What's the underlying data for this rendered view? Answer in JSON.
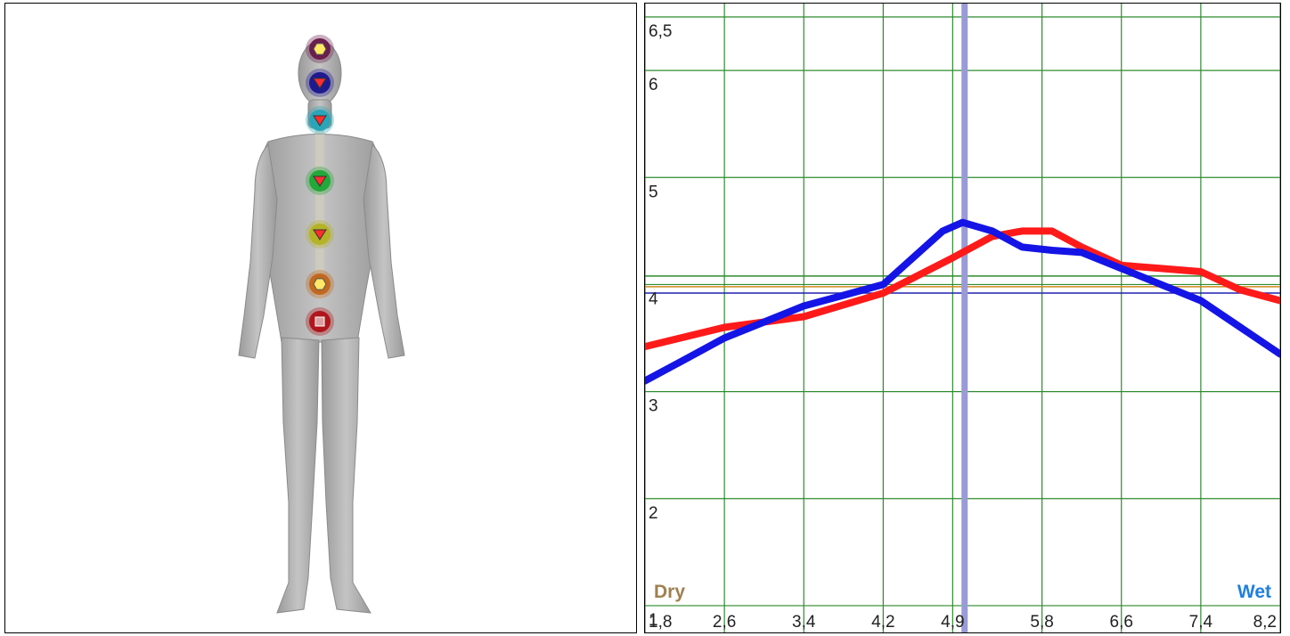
{
  "body_view": {
    "figure": "human-figure-front",
    "chakras": [
      {
        "name": "crown",
        "color": "#6b1d4e",
        "marker": "hexagon",
        "marker_color": "#ffe866"
      },
      {
        "name": "third-eye",
        "color": "#1f1b8f",
        "marker": "triangle-down",
        "marker_color": "#ff2d2d"
      },
      {
        "name": "throat",
        "color": "#2aa5b8",
        "marker": "triangle-down",
        "marker_color": "#ff2d2d"
      },
      {
        "name": "heart",
        "color": "#23a83a",
        "marker": "triangle-down",
        "marker_color": "#ff2d2d"
      },
      {
        "name": "solar-plexus",
        "color": "#b5b327",
        "marker": "triangle-down",
        "marker_color": "#ff2d2d"
      },
      {
        "name": "sacral",
        "color": "#c2691f",
        "marker": "hexagon",
        "marker_color": "#ffe866"
      },
      {
        "name": "root",
        "color": "#b0161b",
        "marker": "square",
        "marker_color": "#d8a0a0"
      }
    ]
  },
  "chart_data": {
    "type": "line",
    "xlim": [
      1.8,
      8.2
    ],
    "ylim": [
      0.75,
      6.6
    ],
    "x_ticks": [
      "1,8",
      "2,6",
      "3,4",
      "4,2",
      "4,9",
      "5,8",
      "6,6",
      "7,4",
      "8,2"
    ],
    "x_tick_values": [
      1.8,
      2.6,
      3.4,
      4.2,
      4.9,
      5.8,
      6.6,
      7.4,
      8.2
    ],
    "y_ticks": [
      "1",
      "2",
      "3",
      "4",
      "5",
      "6",
      "6,5"
    ],
    "y_tick_values": [
      1,
      2,
      3,
      4,
      5,
      6,
      6.5
    ],
    "grid": true,
    "grid_color": "#2e8b2e",
    "left_label": "Dry",
    "right_label": "Wet",
    "left_label_color": "#a08050",
    "right_label_color": "#1f7fe0",
    "series": [
      {
        "color": "#ff1a1a",
        "x": [
          1.8,
          2.6,
          3.0,
          3.4,
          4.2,
          4.9,
          5.3,
          5.6,
          5.9,
          6.2,
          6.6,
          7.0,
          7.4,
          7.8,
          8.2
        ],
        "y": [
          3.42,
          3.6,
          3.65,
          3.7,
          3.92,
          4.25,
          4.45,
          4.5,
          4.5,
          4.35,
          4.18,
          4.15,
          4.12,
          3.95,
          3.85
        ]
      },
      {
        "color": "#1414e6",
        "x": [
          1.8,
          2.2,
          2.6,
          3.0,
          3.4,
          3.8,
          4.2,
          4.5,
          4.8,
          5.0,
          5.3,
          5.6,
          5.9,
          6.2,
          6.6,
          7.0,
          7.4,
          7.8,
          8.2
        ],
        "y": [
          3.1,
          3.3,
          3.5,
          3.65,
          3.8,
          3.9,
          4.0,
          4.25,
          4.5,
          4.58,
          4.5,
          4.35,
          4.32,
          4.3,
          4.15,
          4.0,
          3.85,
          3.6,
          3.35
        ]
      }
    ],
    "reference_lines": [
      {
        "axis": "y",
        "value": 3.98,
        "color": "#d08a1e"
      },
      {
        "axis": "y",
        "value": 3.92,
        "color": "#2020b0"
      },
      {
        "axis": "y",
        "value": 4.08,
        "color": "#2e8b2e"
      },
      {
        "axis": "x",
        "value": 5.02,
        "color": "#9a9ad6"
      }
    ]
  }
}
